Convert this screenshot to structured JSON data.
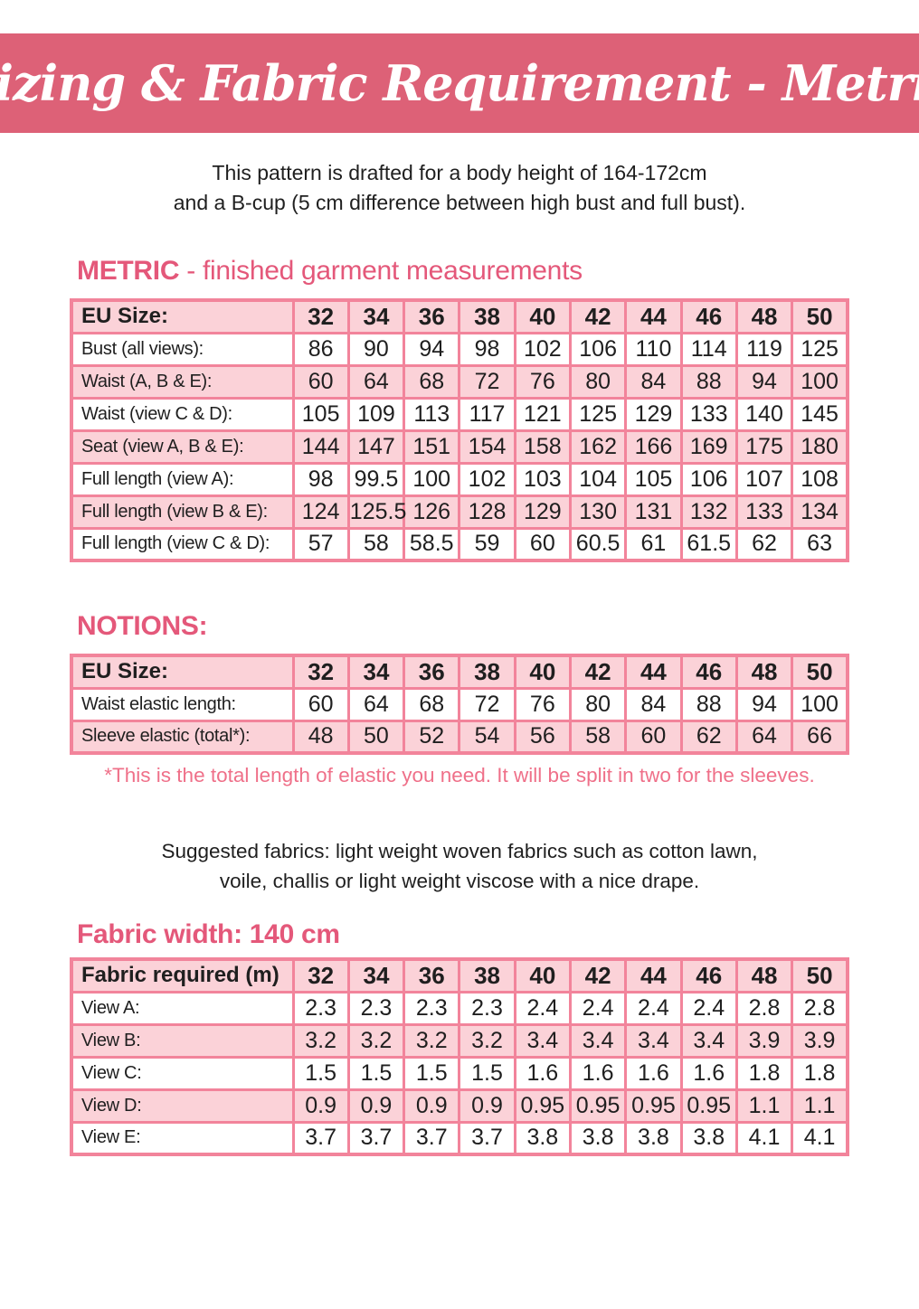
{
  "colors": {
    "banner": "#dd6177",
    "heading_pink": "#e4587a",
    "table_border": "#f2849b",
    "row_pink": "#fbd2d8",
    "note_pink": "#ef7089"
  },
  "banner": {
    "title": "Sizing & Fabric Requirement - Metric"
  },
  "intro": {
    "line1": "This pattern is drafted for a body height of 164-172cm",
    "line2": "and a B-cup (5 cm difference between high bust and full bust)."
  },
  "metric": {
    "heading_strong": "METRIC",
    "heading_rest": " - finished garment measurements",
    "table": {
      "header_label": "EU Size:",
      "sizes": [
        "32",
        "34",
        "36",
        "38",
        "40",
        "42",
        "44",
        "46",
        "48",
        "50"
      ],
      "rows": [
        {
          "label": "Bust (all views):",
          "values": [
            "86",
            "90",
            "94",
            "98",
            "102",
            "106",
            "110",
            "114",
            "119",
            "125"
          ]
        },
        {
          "label": "Waist (A, B & E):",
          "values": [
            "60",
            "64",
            "68",
            "72",
            "76",
            "80",
            "84",
            "88",
            "94",
            "100"
          ]
        },
        {
          "label": "Waist (view C & D):",
          "values": [
            "105",
            "109",
            "113",
            "117",
            "121",
            "125",
            "129",
            "133",
            "140",
            "145"
          ]
        },
        {
          "label": "Seat (view A, B & E):",
          "values": [
            "144",
            "147",
            "151",
            "154",
            "158",
            "162",
            "166",
            "169",
            "175",
            "180"
          ]
        },
        {
          "label": "Full length (view A):",
          "values": [
            "98",
            "99.5",
            "100",
            "102",
            "103",
            "104",
            "105",
            "106",
            "107",
            "108"
          ]
        },
        {
          "label": "Full length (view B & E):",
          "values": [
            "124",
            "125.5",
            "126",
            "128",
            "129",
            "130",
            "131",
            "132",
            "133",
            "134"
          ]
        },
        {
          "label": "Full length (view C & D):",
          "values": [
            "57",
            "58",
            "58.5",
            "59",
            "60",
            "60.5",
            "61",
            "61.5",
            "62",
            "63"
          ]
        }
      ]
    }
  },
  "notions": {
    "heading": "NOTIONS:",
    "table": {
      "header_label": "EU Size:",
      "sizes": [
        "32",
        "34",
        "36",
        "38",
        "40",
        "42",
        "44",
        "46",
        "48",
        "50"
      ],
      "rows": [
        {
          "label": "Waist elastic length:",
          "values": [
            "60",
            "64",
            "68",
            "72",
            "76",
            "80",
            "84",
            "88",
            "94",
            "100"
          ]
        },
        {
          "label": "Sleeve elastic (total*):",
          "values": [
            "48",
            "50",
            "52",
            "54",
            "56",
            "58",
            "60",
            "62",
            "64",
            "66"
          ]
        }
      ]
    },
    "note": "*This is the total length of elastic you need. It will be split in two for the sleeves."
  },
  "fabrics": {
    "line1": "Suggested fabrics: light weight woven fabrics such as cotton lawn,",
    "line2": "voile, challis or light weight viscose with a nice drape."
  },
  "fabric": {
    "heading": "Fabric width: 140 cm",
    "table": {
      "header_label": "Fabric required (m)",
      "sizes": [
        "32",
        "34",
        "36",
        "38",
        "40",
        "42",
        "44",
        "46",
        "48",
        "50"
      ],
      "rows": [
        {
          "label": "View A:",
          "values": [
            "2.3",
            "2.3",
            "2.3",
            "2.3",
            "2.4",
            "2.4",
            "2.4",
            "2.4",
            "2.8",
            "2.8"
          ]
        },
        {
          "label": "View B:",
          "values": [
            "3.2",
            "3.2",
            "3.2",
            "3.2",
            "3.4",
            "3.4",
            "3.4",
            "3.4",
            "3.9",
            "3.9"
          ]
        },
        {
          "label": "View C:",
          "values": [
            "1.5",
            "1.5",
            "1.5",
            "1.5",
            "1.6",
            "1.6",
            "1.6",
            "1.6",
            "1.8",
            "1.8"
          ]
        },
        {
          "label": "View D:",
          "values": [
            "0.9",
            "0.9",
            "0.9",
            "0.9",
            "0.95",
            "0.95",
            "0.95",
            "0.95",
            "1.1",
            "1.1"
          ]
        },
        {
          "label": "View E:",
          "values": [
            "3.7",
            "3.7",
            "3.7",
            "3.7",
            "3.8",
            "3.8",
            "3.8",
            "3.8",
            "4.1",
            "4.1"
          ]
        }
      ]
    }
  }
}
